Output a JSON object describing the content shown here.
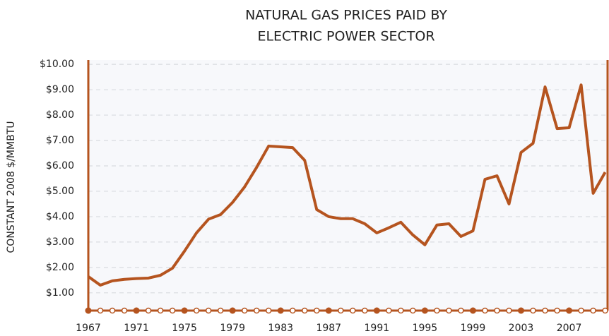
{
  "chart_data": {
    "type": "line",
    "title": [
      "NATURAL GAS PRICES PAID BY",
      "ELECTRIC POWER SECTOR"
    ],
    "y_label": "CONSTANT 2008 $/MMBTU",
    "x": [
      1967,
      1968,
      1969,
      1970,
      1971,
      1972,
      1973,
      1974,
      1975,
      1976,
      1977,
      1978,
      1979,
      1980,
      1981,
      1982,
      1983,
      1984,
      1985,
      1986,
      1987,
      1988,
      1989,
      1990,
      1991,
      1992,
      1993,
      1994,
      1995,
      1996,
      1997,
      1998,
      1999,
      2000,
      2001,
      2002,
      2003,
      2004,
      2005,
      2006,
      2007,
      2008,
      2009,
      2010
    ],
    "series": [
      {
        "name": "Natural gas price",
        "color": "#b5541f",
        "values": [
          1.64,
          1.3,
          1.47,
          1.53,
          1.56,
          1.58,
          1.69,
          1.97,
          2.64,
          3.36,
          3.9,
          4.08,
          4.56,
          5.17,
          5.94,
          6.78,
          6.75,
          6.72,
          6.22,
          4.28,
          4.0,
          3.92,
          3.92,
          3.72,
          3.36,
          3.56,
          3.78,
          3.28,
          2.89,
          3.67,
          3.72,
          3.22,
          3.44,
          5.47,
          5.61,
          4.5,
          6.53,
          6.89,
          9.11,
          7.47,
          7.5,
          9.19,
          4.92,
          5.75
        ]
      }
    ],
    "xlim": [
      1967,
      2010.2
    ],
    "xticks": [
      1967,
      1971,
      1975,
      1979,
      1983,
      1987,
      1991,
      1995,
      1999,
      2003,
      2007
    ],
    "ylim": [
      0.3,
      10.17
    ],
    "yticks": [
      {
        "value": 1,
        "label": "$1.00"
      },
      {
        "value": 2,
        "label": "$2.00"
      },
      {
        "value": 3,
        "label": "$3.00"
      },
      {
        "value": 4,
        "label": "$4.00"
      },
      {
        "value": 5,
        "label": "$5.00"
      },
      {
        "value": 6,
        "label": "$6.00"
      },
      {
        "value": 7,
        "label": "$7.00"
      },
      {
        "value": 8,
        "label": "$8.00"
      },
      {
        "value": 9,
        "label": "$9.00"
      },
      {
        "value": 10,
        "label": "$10.00"
      }
    ],
    "grid": true
  }
}
